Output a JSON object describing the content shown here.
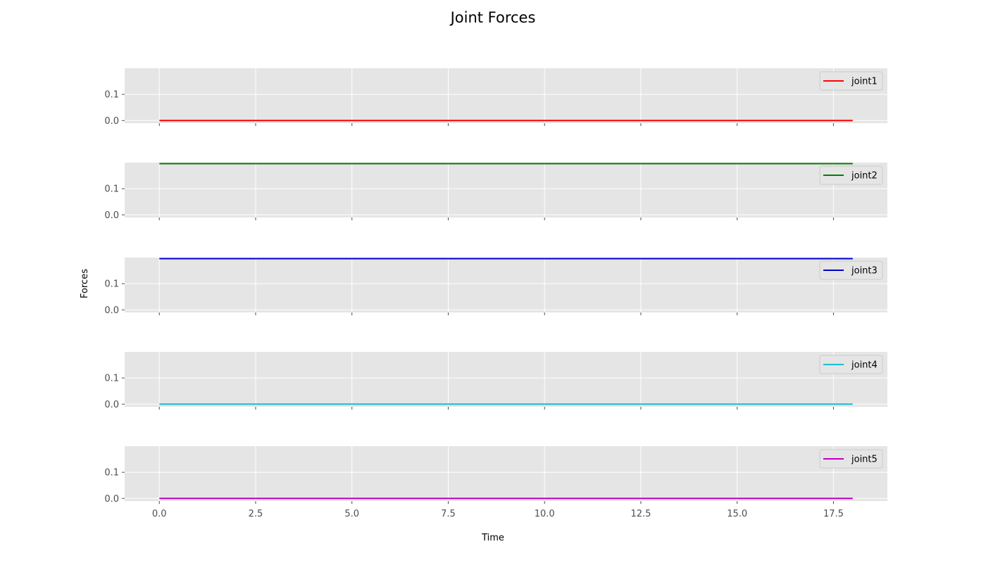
{
  "figure": {
    "title": "Joint Forces",
    "xlabel": "Time",
    "ylabel": "Forces"
  },
  "chart_data": {
    "type": "line",
    "title": "Joint Forces",
    "xlabel": "Time",
    "ylabel": "Forces",
    "xlim": [
      -0.9,
      18.9
    ],
    "ylim": [
      -0.01,
      0.2
    ],
    "shared_x": true,
    "x_ticks": [
      "0.0",
      "2.5",
      "5.0",
      "7.5",
      "10.0",
      "12.5",
      "15.0",
      "17.5"
    ],
    "x_tick_values": [
      0,
      2.5,
      5,
      7.5,
      10,
      12.5,
      15,
      17.5
    ],
    "y_ticks": [
      "0.0",
      "0.1"
    ],
    "y_tick_values": [
      0,
      0.1
    ],
    "grid": true,
    "legend_position": "upper right",
    "style": {
      "axes_bg": "#e5e5e5",
      "grid_color": "#ffffff",
      "tick_color": "#4d4d4d"
    },
    "subplots": [
      {
        "legend": "joint1",
        "color": "#ff0000",
        "x": [
          0,
          18
        ],
        "y": [
          0.0,
          0.0
        ]
      },
      {
        "legend": "joint2",
        "color": "#008000",
        "x": [
          0,
          18
        ],
        "y": [
          0.196,
          0.196
        ]
      },
      {
        "legend": "joint3",
        "color": "#0000cc",
        "x": [
          0,
          18
        ],
        "y": [
          0.196,
          0.196
        ]
      },
      {
        "legend": "joint4",
        "color": "#17becf",
        "x": [
          0,
          18
        ],
        "y": [
          0.0,
          0.0
        ]
      },
      {
        "legend": "joint5",
        "color": "#bf00bf",
        "x": [
          0,
          18
        ],
        "y": [
          0.0,
          0.0
        ]
      }
    ]
  }
}
